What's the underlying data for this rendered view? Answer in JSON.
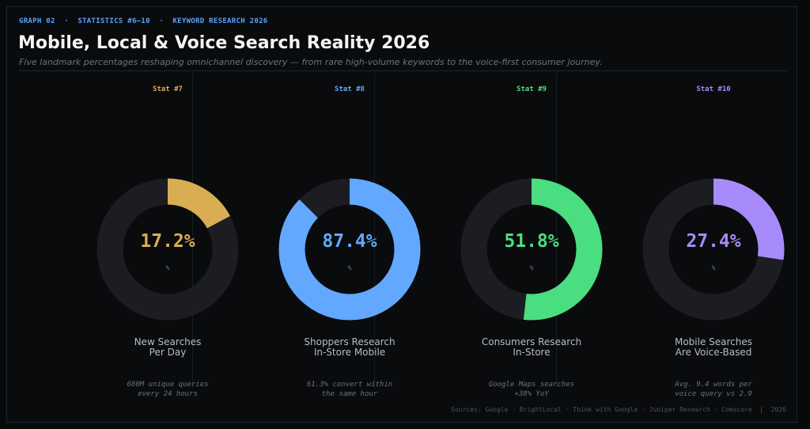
{
  "header": {
    "kicker": "GRAPH 02  ·  STATISTICS #6–10  ·  KEYWORD RESEARCH 2026",
    "title": "Mobile, Local & Voice Search Reality 2026",
    "subtitle": "Five landmark percentages reshaping omnichannel discovery — from rare high-volume keywords to the voice-first consumer journey."
  },
  "footer": {
    "sources": "Sources: Google · BrightLocal · Think with Google · Juniper Research · Comscore  |  2026"
  },
  "colors": {
    "track": "#1c1d22",
    "stat7": "#d9ad52",
    "stat8": "#62a8ff",
    "stat9": "#4ade80",
    "stat10": "#a78bfa"
  },
  "chart_data": [
    {
      "type": "pie",
      "subtype": "donut",
      "tag": "Stat #7",
      "value": 17.2,
      "value_label": "17.2%",
      "unit": "%",
      "label_line1": "New Searches",
      "label_line2": "Per Day",
      "note_line1": "680M unique queries",
      "note_line2": "every 24 hours",
      "color": "#d9ad52"
    },
    {
      "type": "pie",
      "subtype": "donut",
      "tag": "Stat #8",
      "value": 87.4,
      "value_label": "87.4%",
      "unit": "%",
      "label_line1": "Shoppers Research",
      "label_line2": "In-Store Mobile",
      "note_line1": "61.3% convert within",
      "note_line2": "the same hour",
      "color": "#62a8ff"
    },
    {
      "type": "pie",
      "subtype": "donut",
      "tag": "Stat #9",
      "value": 51.8,
      "value_label": "51.8%",
      "unit": "%",
      "label_line1": "Consumers Research",
      "label_line2": "In-Store",
      "note_line1": "Google Maps searches",
      "note_line2": "+38% YoY",
      "color": "#4ade80"
    },
    {
      "type": "pie",
      "subtype": "donut",
      "tag": "Stat #10",
      "value": 27.4,
      "value_label": "27.4%",
      "unit": "%",
      "label_line1": "Mobile Searches",
      "label_line2": "Are Voice-Based",
      "note_line1": "Avg. 9.4 words per",
      "note_line2": "voice query vs 2.9",
      "color": "#a78bfa"
    }
  ]
}
